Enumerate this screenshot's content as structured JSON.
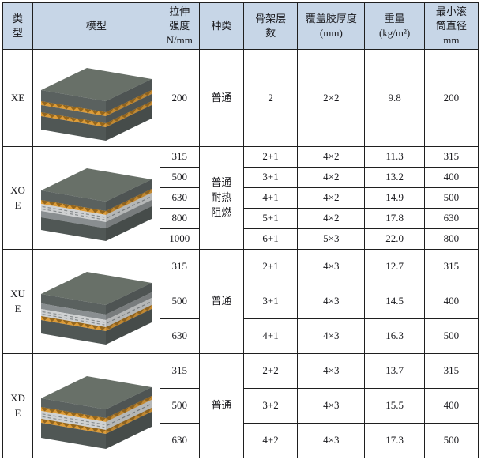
{
  "header": {
    "bg_color": "#c7d6e7",
    "columns": [
      {
        "key": "type",
        "label": "类\n型"
      },
      {
        "key": "model",
        "label": "模型"
      },
      {
        "key": "strength",
        "label": "拉伸\n强度\nN/mm"
      },
      {
        "key": "kind",
        "label": "种类"
      },
      {
        "key": "plies",
        "label": "骨架层\n数"
      },
      {
        "key": "cover",
        "label": "覆盖胶厚度\n(mm)"
      },
      {
        "key": "weight",
        "label": "重量\n(kg/m²)"
      },
      {
        "key": "diameter",
        "label": "最小滚\n筒直径\nmm"
      }
    ]
  },
  "colors": {
    "border": "#1f1f1f",
    "header_bg": "#c7d6e7",
    "text": "#1a1a1e",
    "belt_dark_gray": "#5e6563",
    "belt_bottom_gray": "#545b59",
    "belt_top_gray": "#687068",
    "belt_mid_gray": "#8f9496",
    "belt_white": "#d8dadb",
    "belt_yellow": "#e6a33b"
  },
  "sections": [
    {
      "type": "XE",
      "kind": "普通",
      "model": {
        "name": "xe-belt-cross-section",
        "top": "#687068",
        "layers": [
          {
            "color": "#5e6563",
            "h": 14
          },
          {
            "color": "#e6a33b",
            "h": 5,
            "tex": "zig"
          },
          {
            "color": "#5e6563",
            "h": 9
          },
          {
            "color": "#e6a33b",
            "h": 5,
            "tex": "zig"
          },
          {
            "color": "#545b59",
            "h": 17
          }
        ]
      },
      "rows": [
        {
          "strength": "200",
          "plies": "2",
          "cover": "2×2",
          "weight": "9.8",
          "diameter": "200"
        }
      ]
    },
    {
      "type": "XO\nE",
      "kind": "普通\n耐热\n阻燃",
      "model": {
        "name": "xoe-belt-cross-section",
        "top": "#687068",
        "layers": [
          {
            "color": "#5e6563",
            "h": 12
          },
          {
            "color": "#e6a33b",
            "h": 5,
            "tex": "zig"
          },
          {
            "color": "#d8dadb",
            "h": 9,
            "tex": "dash"
          },
          {
            "color": "#8f9496",
            "h": 8
          },
          {
            "color": "#545b59",
            "h": 16
          }
        ]
      },
      "rows": [
        {
          "strength": "315",
          "plies": "2+1",
          "cover": "4×2",
          "weight": "11.3",
          "diameter": "315"
        },
        {
          "strength": "500",
          "plies": "3+1",
          "cover": "4×2",
          "weight": "13.2",
          "diameter": "400"
        },
        {
          "strength": "630",
          "plies": "4+1",
          "cover": "4×2",
          "weight": "14.9",
          "diameter": "500"
        },
        {
          "strength": "800",
          "plies": "5+1",
          "cover": "4×2",
          "weight": "17.8",
          "diameter": "630"
        },
        {
          "strength": "1000",
          "plies": "6+1",
          "cover": "5×3",
          "weight": "22.0",
          "diameter": "800"
        }
      ]
    },
    {
      "type": "XU\nE",
      "kind": "普通",
      "model": {
        "name": "xue-belt-cross-section",
        "top": "#687068",
        "layers": [
          {
            "color": "#5e6563",
            "h": 12
          },
          {
            "color": "#8f9496",
            "h": 7
          },
          {
            "color": "#d8dadb",
            "h": 9,
            "tex": "dash"
          },
          {
            "color": "#e6a33b",
            "h": 5,
            "tex": "zig"
          },
          {
            "color": "#545b59",
            "h": 17
          }
        ]
      },
      "rows": [
        {
          "strength": "315",
          "plies": "2+1",
          "cover": "4×3",
          "weight": "12.7",
          "diameter": "315"
        },
        {
          "strength": "500",
          "plies": "3+1",
          "cover": "4×3",
          "weight": "14.5",
          "diameter": "400"
        },
        {
          "strength": "630",
          "plies": "4+1",
          "cover": "4×3",
          "weight": "16.3",
          "diameter": "500"
        }
      ]
    },
    {
      "type": "XD\nE",
      "kind": "普通",
      "model": {
        "name": "xde-belt-cross-section",
        "top": "#687068",
        "layers": [
          {
            "color": "#5e6563",
            "h": 11
          },
          {
            "color": "#e6a33b",
            "h": 5,
            "tex": "zig"
          },
          {
            "color": "#d8dadb",
            "h": 10,
            "tex": "dash"
          },
          {
            "color": "#e6a33b",
            "h": 5,
            "tex": "zig"
          },
          {
            "color": "#545b59",
            "h": 19
          }
        ]
      },
      "rows": [
        {
          "strength": "315",
          "plies": "2+2",
          "cover": "4×3",
          "weight": "13.7",
          "diameter": "315"
        },
        {
          "strength": "500",
          "plies": "3+2",
          "cover": "4×3",
          "weight": "15.5",
          "diameter": "400"
        },
        {
          "strength": "630",
          "plies": "4+2",
          "cover": "4×3",
          "weight": "17.3",
          "diameter": "500"
        }
      ]
    }
  ]
}
